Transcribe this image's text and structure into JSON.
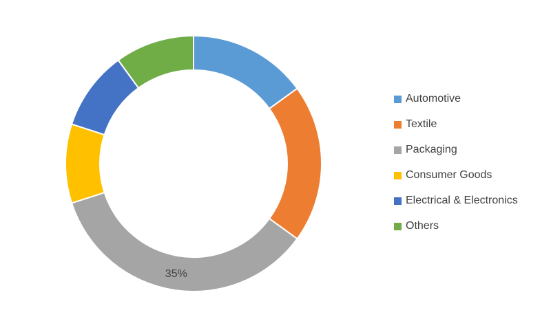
{
  "chart_data": {
    "type": "pie",
    "variant": "donut",
    "categories": [
      "Automotive",
      "Textile",
      "Packaging",
      "Consumer Goods",
      "Electrical & Electronics",
      "Others"
    ],
    "values": [
      15,
      20,
      35,
      10,
      10,
      10
    ],
    "colors": [
      "#5b9bd5",
      "#ed7d31",
      "#a5a5a5",
      "#ffc000",
      "#4472c4",
      "#70ad47"
    ],
    "data_labels": [
      {
        "category": "Packaging",
        "text": "35%"
      }
    ],
    "legend_position": "right",
    "title": ""
  }
}
